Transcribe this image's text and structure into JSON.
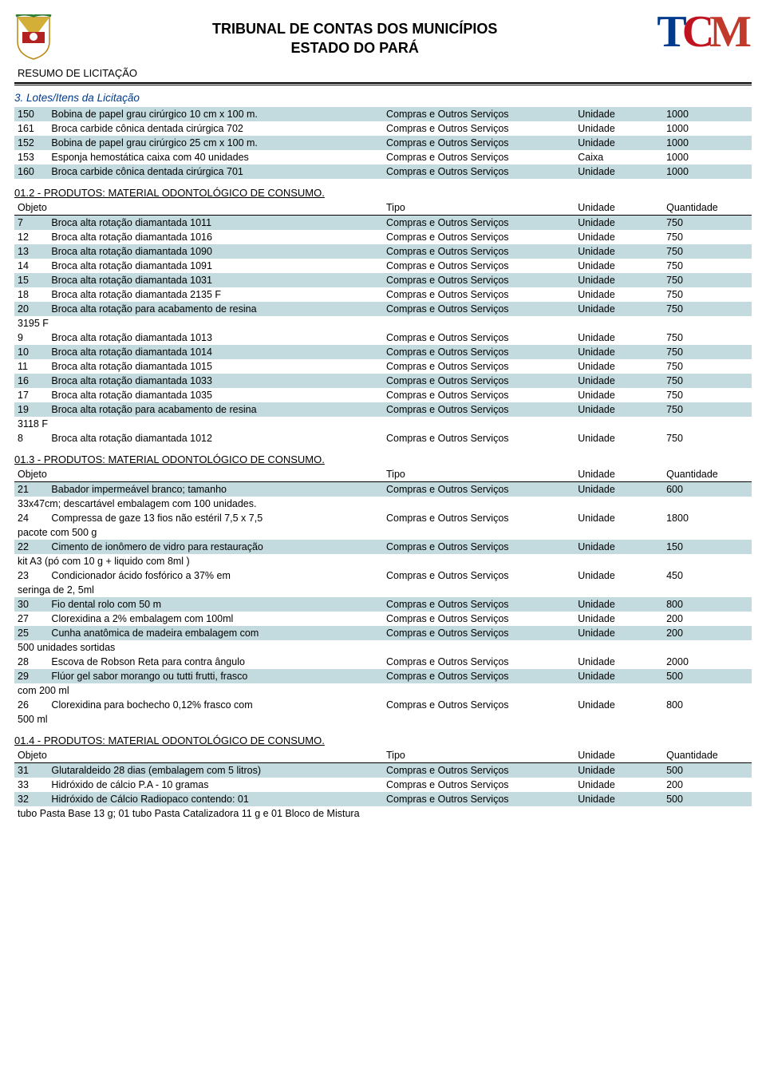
{
  "header": {
    "title_line1": "TRIBUNAL DE CONTAS DOS MUNICÍPIOS",
    "title_line2": "ESTADO DO PARÁ",
    "logo_text": "TCM",
    "subtitle": "RESUMO DE LICITAÇÃO"
  },
  "colors": {
    "blue": "#003a8c",
    "red": "#c1121f",
    "shade": "#c3dade",
    "text": "#000000",
    "bg": "#ffffff"
  },
  "section3": {
    "title": "3. Lotes/Itens da Licitação",
    "section1_rows": [
      {
        "shade": true,
        "num": "150",
        "obj": "Bobina de papel grau cirúrgico 10 cm x 100 m.",
        "tipo": "Compras e Outros Serviços",
        "un": "Unidade",
        "qt": "1000"
      },
      {
        "shade": false,
        "num": "161",
        "obj": "Broca carbide cônica dentada cirúrgica 702",
        "tipo": "Compras e Outros Serviços",
        "un": "Unidade",
        "qt": "1000"
      },
      {
        "shade": true,
        "num": "152",
        "obj": "Bobina de papel grau cirúrgico 25 cm x 100 m.",
        "tipo": "Compras e Outros Serviços",
        "un": "Unidade",
        "qt": "1000"
      },
      {
        "shade": false,
        "num": "153",
        "obj": "Esponja hemostática caixa com 40 unidades",
        "tipo": "Compras e Outros Serviços",
        "un": "Caixa",
        "qt": "1000"
      },
      {
        "shade": true,
        "num": "160",
        "obj": "Broca carbide cônica dentada cirúrgica 701",
        "tipo": "Compras e Outros Serviços",
        "un": "Unidade",
        "qt": "1000"
      }
    ],
    "group2": {
      "title": "01.2 - PRODUTOS: MATERIAL ODONTOLÓGICO DE CONSUMO.",
      "head": {
        "obj": "Objeto",
        "tipo": "Tipo",
        "un": "Unidade",
        "qt": "Quantidade"
      },
      "rows": [
        {
          "shade": true,
          "num": "7",
          "obj": "Broca alta rotação diamantada 1011",
          "tipo": "Compras e Outros Serviços",
          "un": "Unidade",
          "qt": "750"
        },
        {
          "shade": false,
          "num": "12",
          "obj": "Broca alta rotação diamantada 1016",
          "tipo": "Compras e Outros Serviços",
          "un": "Unidade",
          "qt": "750"
        },
        {
          "shade": true,
          "num": "13",
          "obj": "Broca alta rotação diamantada 1090",
          "tipo": "Compras e Outros Serviços",
          "un": "Unidade",
          "qt": "750"
        },
        {
          "shade": false,
          "num": "14",
          "obj": "Broca alta rotação diamantada 1091",
          "tipo": "Compras e Outros Serviços",
          "un": "Unidade",
          "qt": "750"
        },
        {
          "shade": true,
          "num": "15",
          "obj": "Broca alta rotação diamantada 1031",
          "tipo": "Compras e Outros Serviços",
          "un": "Unidade",
          "qt": "750"
        },
        {
          "shade": false,
          "num": "18",
          "obj": "Broca alta rotação diamantada 2135 F",
          "tipo": "Compras e Outros Serviços",
          "un": "Unidade",
          "qt": "750"
        },
        {
          "shade": true,
          "num": "20",
          "obj": "Broca alta rotação para acabamento de resina",
          "wrap": "3195 F",
          "tipo": "Compras e Outros Serviços",
          "un": "Unidade",
          "qt": "750"
        },
        {
          "shade": false,
          "num": "9",
          "obj": "Broca alta rotação diamantada 1013",
          "tipo": "Compras e Outros Serviços",
          "un": "Unidade",
          "qt": "750"
        },
        {
          "shade": true,
          "num": "10",
          "obj": "Broca alta rotação diamantada 1014",
          "tipo": "Compras e Outros Serviços",
          "un": "Unidade",
          "qt": "750"
        },
        {
          "shade": false,
          "num": "11",
          "obj": "Broca alta rotação diamantada 1015",
          "tipo": "Compras e Outros Serviços",
          "un": "Unidade",
          "qt": "750"
        },
        {
          "shade": true,
          "num": "16",
          "obj": "Broca alta rotação diamantada 1033",
          "tipo": "Compras e Outros Serviços",
          "un": "Unidade",
          "qt": "750"
        },
        {
          "shade": false,
          "num": "17",
          "obj": "Broca alta rotação diamantada 1035",
          "tipo": "Compras e Outros Serviços",
          "un": "Unidade",
          "qt": "750"
        },
        {
          "shade": true,
          "num": "19",
          "obj": "Broca alta rotação para acabamento de resina",
          "wrap": "3118 F",
          "tipo": "Compras e Outros Serviços",
          "un": "Unidade",
          "qt": "750"
        },
        {
          "shade": false,
          "num": "8",
          "obj": "Broca alta rotação diamantada 1012",
          "tipo": "Compras e Outros Serviços",
          "un": "Unidade",
          "qt": "750"
        }
      ]
    },
    "group3": {
      "title": "01.3 - PRODUTOS: MATERIAL ODONTOLÓGICO DE CONSUMO.",
      "head": {
        "obj": "Objeto",
        "tipo": "Tipo",
        "un": "Unidade",
        "qt": "Quantidade"
      },
      "rows": [
        {
          "shade": true,
          "num": "21",
          "obj": "Babador impermeável branco; tamanho",
          "wrap": "33x47cm; descartável embalagem com 100 unidades.",
          "tipo": "Compras e Outros Serviços",
          "un": "Unidade",
          "qt": "600"
        },
        {
          "shade": false,
          "num": "24",
          "obj": "Compressa de gaze 13 fios não estéril 7,5 x 7,5",
          "wrap": "pacote com 500 g",
          "tipo": "Compras e Outros Serviços",
          "un": "Unidade",
          "qt": "1800"
        },
        {
          "shade": true,
          "num": "22",
          "obj": "Cimento de ionômero de vidro para restauração",
          "wrap": "kit A3 (pó com 10 g + liquido com 8ml )",
          "tipo": "Compras e Outros Serviços",
          "un": "Unidade",
          "qt": "150"
        },
        {
          "shade": false,
          "num": "23",
          "obj": "Condicionador ácido fosfórico a 37%  em",
          "wrap": "seringa de 2, 5ml",
          "tipo": "Compras e Outros Serviços",
          "un": "Unidade",
          "qt": "450"
        },
        {
          "shade": true,
          "num": "30",
          "obj": "Fio dental rolo com 50 m",
          "tipo": "Compras e Outros Serviços",
          "un": "Unidade",
          "qt": "800"
        },
        {
          "shade": false,
          "num": "27",
          "obj": "Clorexidina a 2% embalagem com 100ml",
          "tipo": "Compras e Outros Serviços",
          "un": "Unidade",
          "qt": "200"
        },
        {
          "shade": true,
          "num": "25",
          "obj": "Cunha anatômica de madeira embalagem com",
          "wrap": "500 unidades sortidas",
          "tipo": "Compras e Outros Serviços",
          "un": "Unidade",
          "qt": "200"
        },
        {
          "shade": false,
          "num": "28",
          "obj": "Escova de Robson Reta para contra ângulo",
          "tipo": "Compras e Outros Serviços",
          "un": "Unidade",
          "qt": "2000"
        },
        {
          "shade": true,
          "num": "29",
          "obj": "Flúor gel sabor morango ou tutti frutti, frasco",
          "wrap": "com 200 ml",
          "tipo": "Compras e Outros Serviços",
          "un": "Unidade",
          "qt": "500"
        },
        {
          "shade": false,
          "num": "26",
          "obj": "Clorexidina para bochecho 0,12% frasco com",
          "wrap": "500 ml",
          "tipo": "Compras e Outros Serviços",
          "un": "Unidade",
          "qt": "800"
        }
      ]
    },
    "group4": {
      "title": "01.4 - PRODUTOS: MATERIAL ODONTOLÓGICO DE CONSUMO.",
      "head": {
        "obj": "Objeto",
        "tipo": "Tipo",
        "un": "Unidade",
        "qt": "Quantidade"
      },
      "rows": [
        {
          "shade": true,
          "num": "31",
          "obj": "Glutaraldeido 28 dias (embalagem com 5 litros)",
          "tipo": "Compras e Outros Serviços",
          "un": "Unidade",
          "qt": "500"
        },
        {
          "shade": false,
          "num": "33",
          "obj": "Hidróxido de cálcio P.A - 10 gramas",
          "tipo": "Compras e Outros Serviços",
          "un": "Unidade",
          "qt": "200"
        },
        {
          "shade": true,
          "num": "32",
          "obj": "Hidróxido de Cálcio Radiopaco contendo: 01",
          "wrap": "tubo Pasta Base 13 g; 01 tubo Pasta Catalizadora 11 g e 01 Bloco de Mistura",
          "tipo": "Compras e Outros Serviços",
          "un": "Unidade",
          "qt": "500"
        }
      ]
    }
  }
}
